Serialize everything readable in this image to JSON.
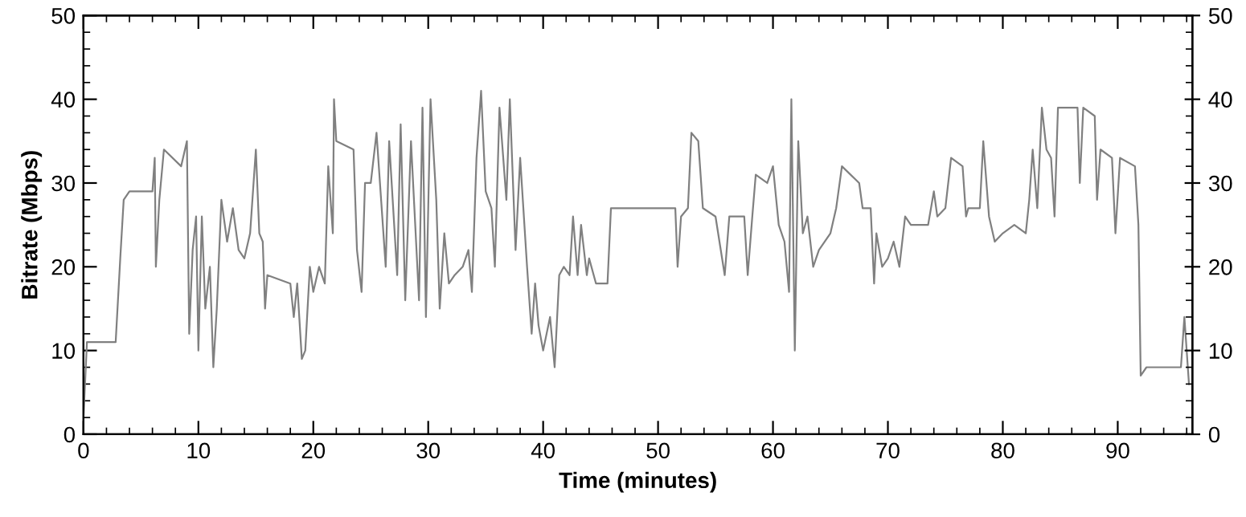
{
  "chart_data": {
    "type": "line",
    "xlabel": "Time (minutes)",
    "ylabel": "Bitrate (Mbps)",
    "xlim": [
      0,
      96.5
    ],
    "ylim": [
      0,
      50
    ],
    "y2lim": [
      0,
      50
    ],
    "xticks": [
      0,
      {
        "value": 2,
        "label": null
      },
      {
        "value": 4,
        "label": null
      },
      {
        "value": 6,
        "label": null
      },
      {
        "value": 8,
        "label": null
      },
      10,
      {
        "value": 12,
        "label": null
      },
      {
        "value": 14,
        "label": null
      },
      {
        "value": 16,
        "label": null
      },
      {
        "value": 18,
        "label": null
      },
      20,
      {
        "value": 22,
        "label": null
      },
      {
        "value": 24,
        "label": null
      },
      {
        "value": 26,
        "label": null
      },
      {
        "value": 28,
        "label": null
      },
      30,
      {
        "value": 32,
        "label": null
      },
      {
        "value": 34,
        "label": null
      },
      {
        "value": 36,
        "label": null
      },
      {
        "value": 38,
        "label": null
      },
      40,
      {
        "value": 42,
        "label": null
      },
      {
        "value": 44,
        "label": null
      },
      {
        "value": 46,
        "label": null
      },
      {
        "value": 48,
        "label": null
      },
      50,
      {
        "value": 52,
        "label": null
      },
      {
        "value": 54,
        "label": null
      },
      {
        "value": 56,
        "label": null
      },
      {
        "value": 58,
        "label": null
      },
      60,
      {
        "value": 62,
        "label": null
      },
      {
        "value": 64,
        "label": null
      },
      {
        "value": 66,
        "label": null
      },
      {
        "value": 68,
        "label": null
      },
      70,
      {
        "value": 72,
        "label": null
      },
      {
        "value": 74,
        "label": null
      },
      {
        "value": 76,
        "label": null
      },
      {
        "value": 78,
        "label": null
      },
      80,
      {
        "value": 82,
        "label": null
      },
      {
        "value": 84,
        "label": null
      },
      {
        "value": 86,
        "label": null
      },
      {
        "value": 88,
        "label": null
      },
      90,
      {
        "value": 92,
        "label": null
      },
      {
        "value": 94,
        "label": null
      },
      {
        "value": 96,
        "label": null
      }
    ],
    "yticks": [
      0,
      {
        "value": 2,
        "label": null
      },
      {
        "value": 4,
        "label": null
      },
      {
        "value": 6,
        "label": null
      },
      {
        "value": 8,
        "label": null
      },
      10,
      {
        "value": 12,
        "label": null
      },
      {
        "value": 14,
        "label": null
      },
      {
        "value": 16,
        "label": null
      },
      {
        "value": 18,
        "label": null
      },
      20,
      {
        "value": 22,
        "label": null
      },
      {
        "value": 24,
        "label": null
      },
      {
        "value": 26,
        "label": null
      },
      {
        "value": 28,
        "label": null
      },
      30,
      {
        "value": 32,
        "label": null
      },
      {
        "value": 34,
        "label": null
      },
      {
        "value": 36,
        "label": null
      },
      {
        "value": 38,
        "label": null
      },
      40,
      {
        "value": 42,
        "label": null
      },
      {
        "value": 44,
        "label": null
      },
      {
        "value": 46,
        "label": null
      },
      {
        "value": 48,
        "label": null
      },
      50
    ],
    "y2ticks": [
      0,
      {
        "value": 2,
        "label": null
      },
      {
        "value": 4,
        "label": null
      },
      {
        "value": 6,
        "label": null
      },
      {
        "value": 8,
        "label": null
      },
      10,
      {
        "value": 12,
        "label": null
      },
      {
        "value": 14,
        "label": null
      },
      {
        "value": 16,
        "label": null
      },
      {
        "value": 18,
        "label": null
      },
      20,
      {
        "value": 22,
        "label": null
      },
      {
        "value": 24,
        "label": null
      },
      {
        "value": 26,
        "label": null
      },
      {
        "value": 28,
        "label": null
      },
      30,
      {
        "value": 32,
        "label": null
      },
      {
        "value": 34,
        "label": null
      },
      {
        "value": 36,
        "label": null
      },
      {
        "value": 38,
        "label": null
      },
      40,
      {
        "value": 42,
        "label": null
      },
      {
        "value": 44,
        "label": null
      },
      {
        "value": 46,
        "label": null
      },
      {
        "value": 48,
        "label": null
      },
      50
    ],
    "grid": false,
    "legend": false,
    "marker": "none",
    "line_style": "solid",
    "series": [
      {
        "color": "#808080",
        "x": [
          0,
          0.3,
          2.8,
          3.2,
          3.5,
          4,
          6,
          6.2,
          6.3,
          6.6,
          7,
          8.5,
          9,
          9.2,
          9.5,
          9.8,
          10,
          10.3,
          10.6,
          11,
          11.3,
          11.6,
          12,
          12.5,
          13,
          13.5,
          14,
          14.5,
          15,
          15.3,
          15.6,
          15.8,
          16,
          18,
          18.3,
          18.6,
          19,
          19.3,
          19.7,
          20,
          20.5,
          21,
          21.3,
          21.7,
          21.8,
          22,
          23.5,
          23.8,
          24.2,
          24.5,
          25,
          25.5,
          26.3,
          26.6,
          27.3,
          27.6,
          28,
          28.5,
          29.2,
          29.5,
          29.8,
          30.2,
          30.7,
          31,
          31.4,
          31.8,
          32.3,
          33,
          33.5,
          33.8,
          34.2,
          34.6,
          35,
          35.5,
          35.8,
          36.2,
          36.8,
          37.1,
          37.6,
          38,
          38.6,
          39,
          39.3,
          39.6,
          40,
          40.6,
          41,
          41.4,
          41.8,
          42.3,
          42.6,
          43,
          43.3,
          43.8,
          44,
          44.6,
          45.6,
          45.9,
          51.5,
          51.7,
          52,
          52.6,
          52.9,
          53.5,
          53.9,
          55,
          55.8,
          56.2,
          57.5,
          57.8,
          58.2,
          58.5,
          59.5,
          60,
          60.5,
          61,
          61.4,
          61.6,
          61.9,
          62.2,
          62.6,
          63,
          63.5,
          64,
          65,
          65.5,
          66,
          67.5,
          67.8,
          68.5,
          68.8,
          69,
          69.5,
          70,
          70.5,
          71,
          71.5,
          72,
          73.5,
          74,
          74.3,
          75,
          75.5,
          76.5,
          76.8,
          77,
          78,
          78.3,
          78.8,
          79.3,
          80,
          81,
          82,
          82.3,
          82.6,
          83,
          83.4,
          83.8,
          84.2,
          84.5,
          84.8,
          85.2,
          86.5,
          86.7,
          87,
          88,
          88.2,
          88.5,
          89.5,
          89.8,
          90.2,
          91.5,
          91.8,
          92,
          92.5,
          95.5,
          95.8,
          96.2
        ],
        "values": [
          2,
          11,
          11,
          21,
          28,
          29,
          29,
          33,
          20,
          28,
          34,
          32,
          35,
          12,
          22,
          26,
          10,
          26,
          15,
          20,
          8,
          15,
          28,
          23,
          27,
          22,
          21,
          24,
          34,
          24,
          23,
          15,
          19,
          18,
          14,
          18,
          9,
          10,
          20,
          17,
          20,
          18,
          32,
          24,
          40,
          35,
          34,
          22,
          17,
          30,
          30,
          36,
          20,
          35,
          19,
          37,
          16,
          35,
          16,
          39,
          14,
          40,
          28,
          15,
          24,
          18,
          19,
          20,
          22,
          17,
          33,
          41,
          29,
          27,
          20,
          39,
          28,
          40,
          22,
          33,
          20,
          12,
          18,
          13,
          10,
          14,
          8,
          19,
          20,
          19,
          26,
          19,
          25,
          19,
          21,
          18,
          18,
          27,
          27,
          20,
          26,
          27,
          36,
          35,
          27,
          26,
          19,
          26,
          26,
          19,
          26,
          31,
          30,
          32,
          25,
          23,
          17,
          40,
          10,
          35,
          24,
          26,
          20,
          22,
          24,
          27,
          32,
          30,
          27,
          27,
          18,
          24,
          20,
          21,
          23,
          20,
          26,
          25,
          25,
          29,
          26,
          27,
          33,
          32,
          26,
          27,
          27,
          35,
          26,
          23,
          24,
          25,
          24,
          28,
          34,
          27,
          39,
          34,
          33,
          26,
          39,
          39,
          39,
          30,
          39,
          38,
          28,
          34,
          33,
          24,
          33,
          32,
          25,
          7,
          8,
          8,
          14,
          6
        ]
      }
    ]
  }
}
